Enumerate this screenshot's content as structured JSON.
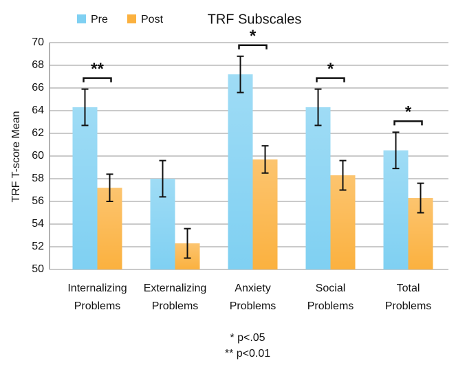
{
  "chart_data": {
    "type": "bar",
    "title": "TRF Subscales",
    "y_label": "TRF T-score Mean",
    "categories": [
      "Internalizing Problems",
      "Externalizing Problems",
      "Anxiety Problems",
      "Social Problems",
      "Total Problems"
    ],
    "series": [
      {
        "name": "Pre",
        "color": "#7fd0f2",
        "values": [
          64.3,
          58.0,
          67.2,
          64.3,
          60.5
        ],
        "errors": [
          1.6,
          1.6,
          1.6,
          1.6,
          1.6
        ]
      },
      {
        "name": "Post",
        "color": "#fbb13f",
        "values": [
          57.2,
          52.3,
          59.7,
          58.3,
          56.3
        ],
        "errors": [
          1.2,
          1.3,
          1.2,
          1.3,
          1.3
        ]
      }
    ],
    "ylim": [
      50,
      70
    ],
    "yticks": [
      50,
      52,
      54,
      56,
      58,
      60,
      62,
      64,
      66,
      68,
      70
    ],
    "grid": true,
    "annotations": [
      {
        "category": "Internalizing Problems",
        "text": "**"
      },
      {
        "category": "Anxiety Problems",
        "text": "*"
      },
      {
        "category": "Social Problems",
        "text": "*"
      },
      {
        "category": "Total Problems",
        "text": "*"
      }
    ],
    "footnotes": [
      "* p<.05",
      "** p<0.01"
    ]
  }
}
